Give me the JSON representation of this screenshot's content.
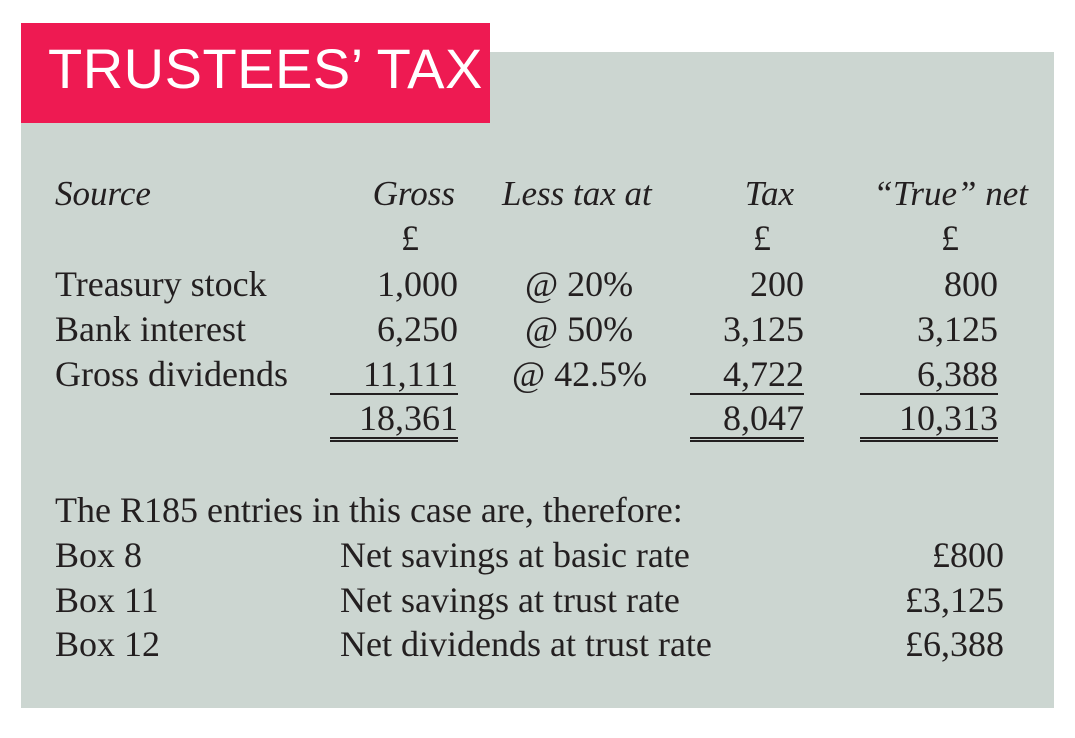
{
  "title": "TRUSTEES’ TAX",
  "table": {
    "headers": {
      "source": "Source",
      "gross": "Gross",
      "less_tax": "Less tax at",
      "tax": "Tax",
      "true_net": "“True” net"
    },
    "units": {
      "gross": "£",
      "tax": "£",
      "true_net": "£"
    },
    "rows": [
      {
        "source": "Treasury stock",
        "gross": "1,000",
        "rate": "@ 20%",
        "tax": "200",
        "net": "800"
      },
      {
        "source": "Bank interest",
        "gross": "6,250",
        "rate": "@ 50%",
        "tax": "3,125",
        "net": "3,125"
      },
      {
        "source": "Gross dividends",
        "gross": "11,111",
        "rate": "@ 42.5%",
        "tax": "4,722",
        "net": "6,388"
      }
    ],
    "totals": {
      "gross": "18,361",
      "tax": "8,047",
      "net": "10,313"
    }
  },
  "r185": {
    "intro": "The R185 entries in this case are, therefore:",
    "entries": [
      {
        "box": "Box 8",
        "description": "Net savings at basic rate",
        "amount": "£800"
      },
      {
        "box": "Box 11",
        "description": "Net savings at trust rate",
        "amount": "£3,125"
      },
      {
        "box": "Box 12",
        "description": "Net dividends at trust rate",
        "amount": "£6,388"
      }
    ]
  }
}
